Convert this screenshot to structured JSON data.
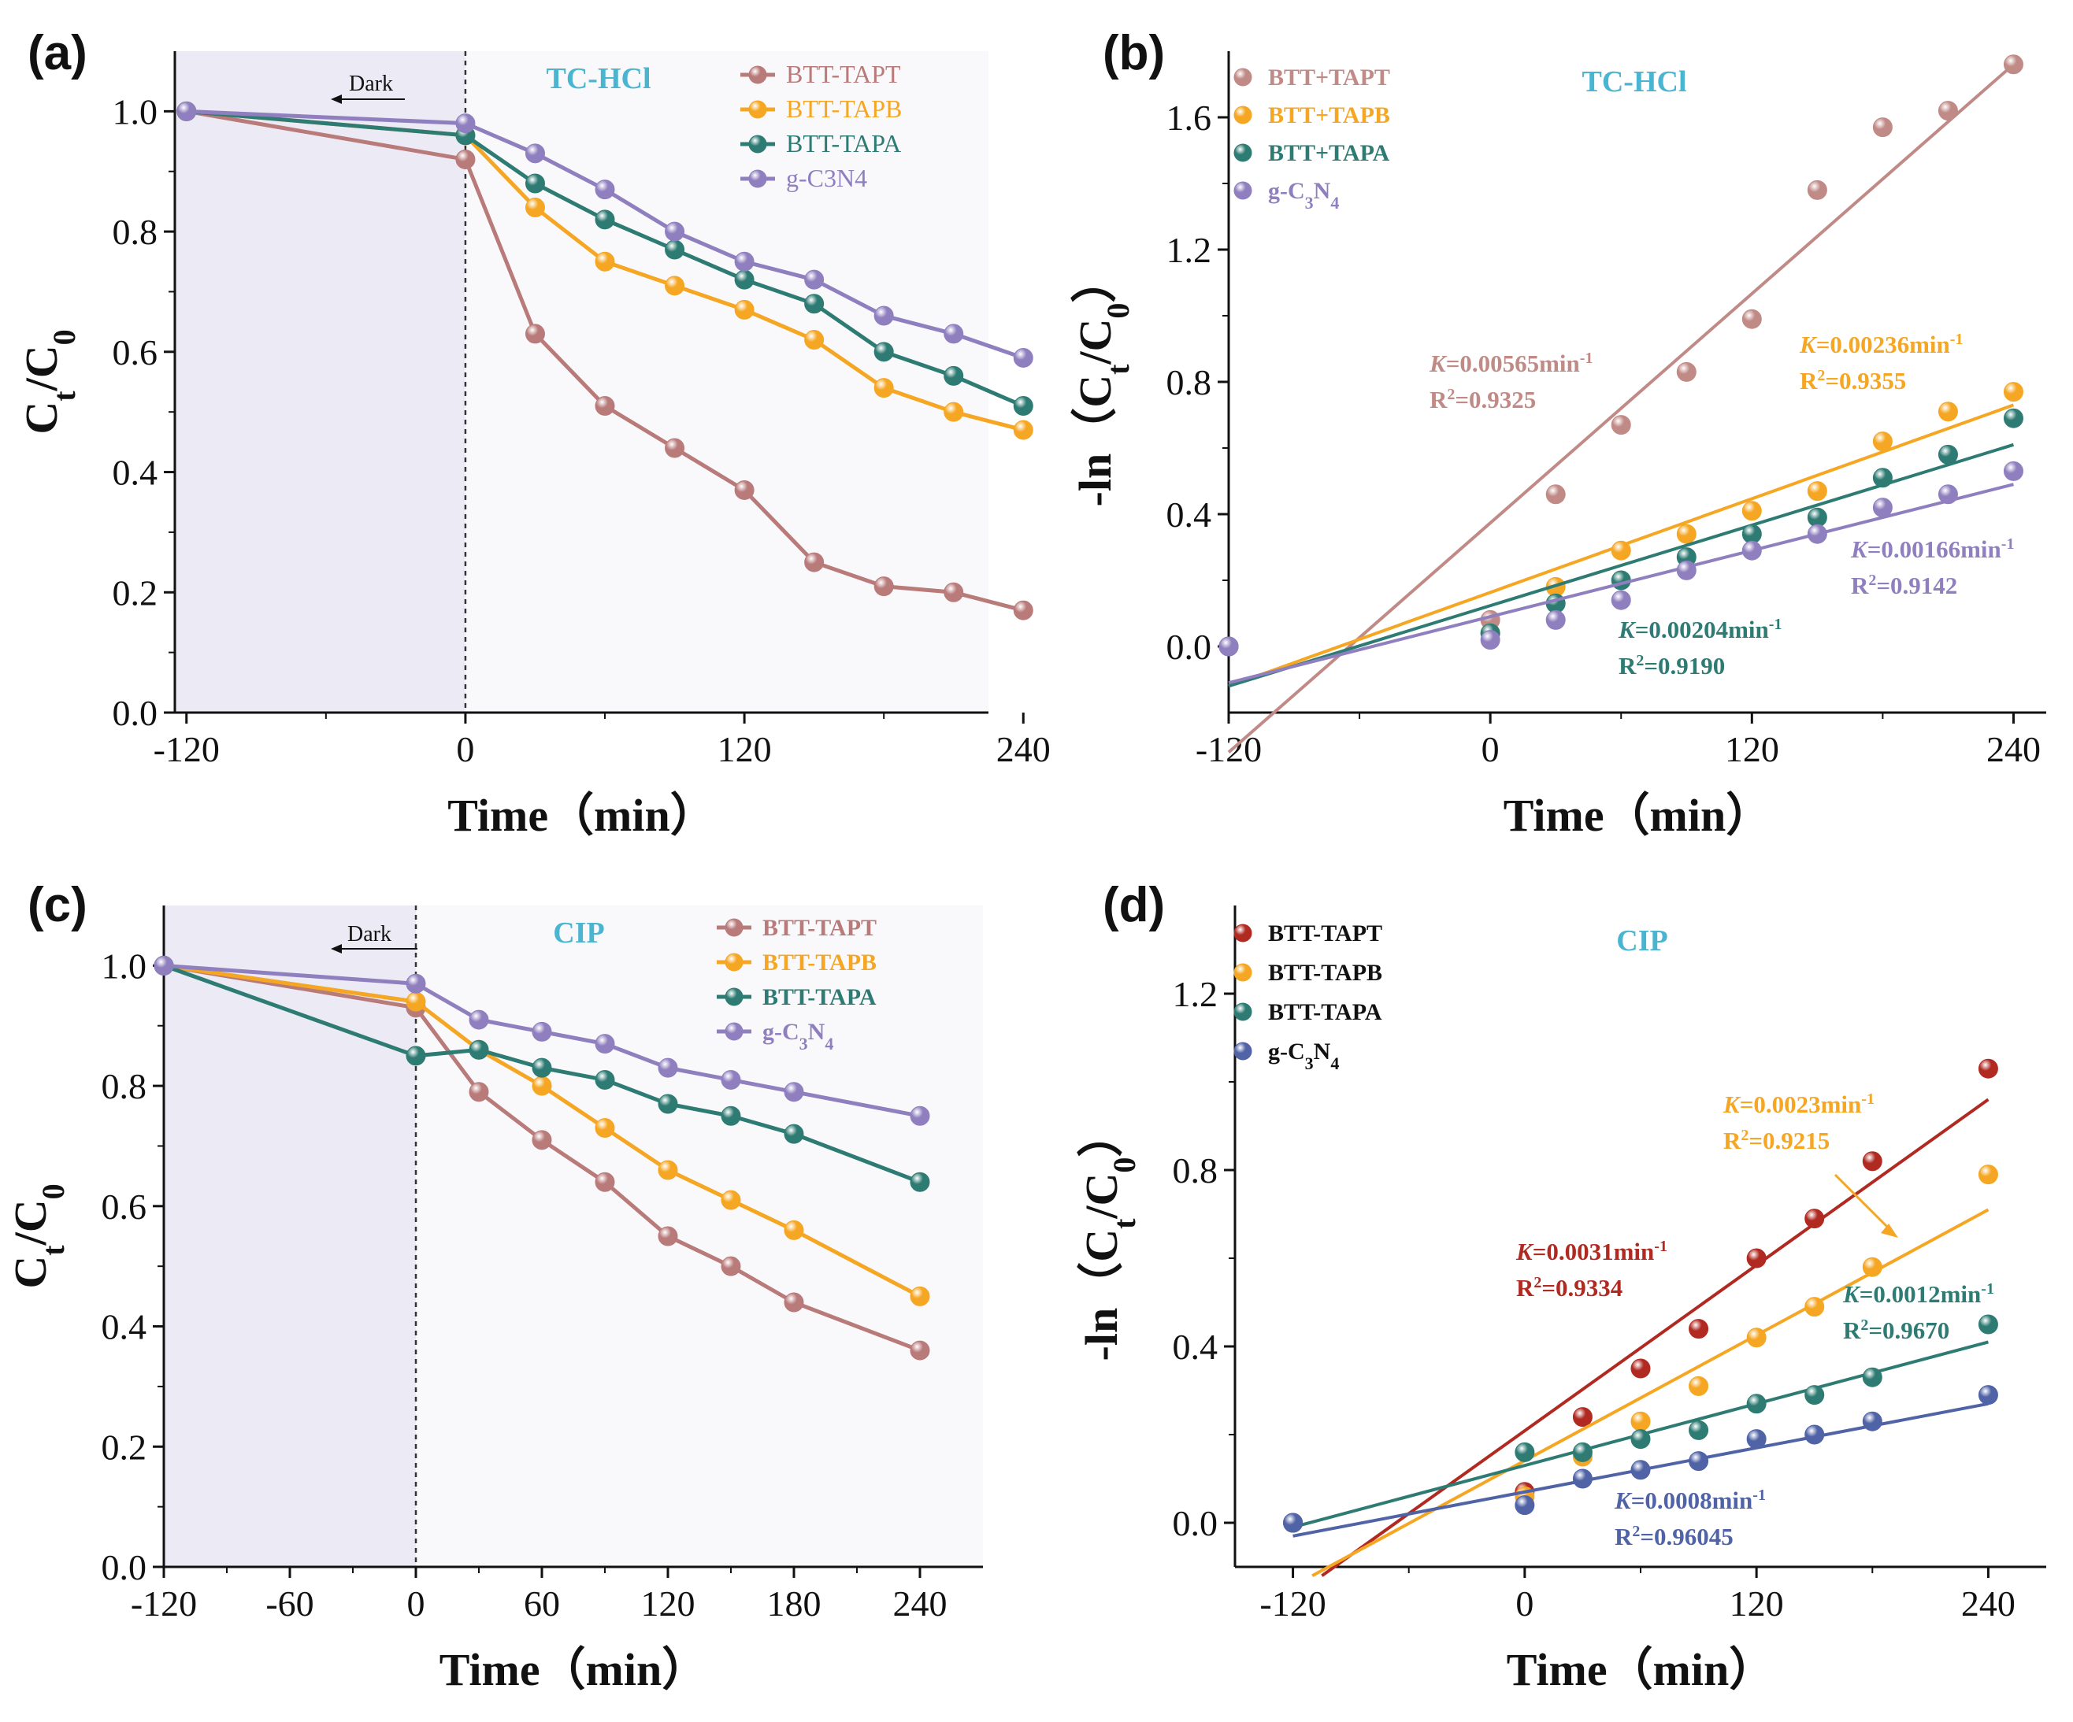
{
  "chart_data": [
    {
      "panel": "(a)",
      "type": "line",
      "title": "TC-HCl",
      "dark_label": "Dark",
      "xlabel": "Time（min）",
      "ylabel_main": "C",
      "ylabel_sub1": "t",
      "ylabel_mid": "/C",
      "ylabel_sub2": "0",
      "xlim": [
        -125,
        225
      ],
      "ylim": [
        0,
        1.1
      ],
      "xticks": [
        -120,
        0,
        120,
        240
      ],
      "xtick_labels": [
        "-120",
        "0",
        "120",
        "240"
      ],
      "yticks": [
        0,
        0.2,
        0.4,
        0.6,
        0.8,
        1.0
      ],
      "ytick_labels": [
        "0.0",
        "0.2",
        "0.4",
        "0.6",
        "0.8",
        "1.0"
      ],
      "x": [
        -120,
        0,
        30,
        60,
        90,
        120,
        150,
        180,
        210,
        240
      ],
      "shade_range": [
        -125,
        0
      ],
      "series": [
        {
          "name": "BTT-TAPT",
          "color": "#b97a7a",
          "values": [
            1.0,
            0.92,
            0.63,
            0.51,
            0.44,
            0.37,
            0.25,
            0.21,
            0.2,
            0.17
          ]
        },
        {
          "name": "BTT-TAPB",
          "color": "#f5a623",
          "values": [
            1.0,
            0.96,
            0.84,
            0.75,
            0.71,
            0.67,
            0.62,
            0.54,
            0.5,
            0.47
          ]
        },
        {
          "name": "BTT-TAPA",
          "color": "#2e7b73",
          "values": [
            1.0,
            0.96,
            0.88,
            0.82,
            0.77,
            0.72,
            0.68,
            0.6,
            0.56,
            0.51
          ]
        },
        {
          "name": "g-C3N4",
          "color": "#8f7fbf",
          "values": [
            1.0,
            0.98,
            0.93,
            0.87,
            0.8,
            0.75,
            0.72,
            0.66,
            0.63,
            0.59
          ]
        }
      ]
    },
    {
      "panel": "(b)",
      "type": "scatter",
      "title": "TC-HCl",
      "xlabel": "Time（min）",
      "ylabel": "-ln（C",
      "ylabel_sub1": "t",
      "ylabel_mid": "/C",
      "ylabel_sub2": "0",
      "ylabel_end": "）",
      "xlim": [
        -120,
        255
      ],
      "ylim": [
        -0.2,
        1.8
      ],
      "xticks": [
        -120,
        0,
        120,
        240
      ],
      "xtick_labels": [
        "-120",
        "0",
        "120",
        "240"
      ],
      "yticks": [
        0.0,
        0.4,
        0.8,
        1.2,
        1.6
      ],
      "ytick_labels": [
        "0.0",
        "0.4",
        "0.8",
        "1.2",
        "1.6"
      ],
      "x": [
        -120,
        0,
        30,
        60,
        90,
        120,
        150,
        180,
        210,
        240
      ],
      "series": [
        {
          "name": "BTT+TAPT",
          "color": "#c08a86",
          "values": [
            0.0,
            0.08,
            0.46,
            0.67,
            0.83,
            0.99,
            1.38,
            1.57,
            1.62,
            1.76
          ],
          "fit": [
            [
              -120,
              -0.32
            ],
            [
              240,
              1.76
            ]
          ],
          "k_label": "K",
          "k_value": "=0.00565min",
          "k_exp": "-1",
          "r2_label": "R",
          "r2_exp": "2",
          "r2_value": "=0.9325"
        },
        {
          "name": "BTT+TAPB",
          "color": "#f5a623",
          "values": [
            0.0,
            0.04,
            0.18,
            0.29,
            0.34,
            0.41,
            0.47,
            0.62,
            0.71,
            0.77
          ],
          "fit": [
            [
              -120,
              -0.12
            ],
            [
              240,
              0.73
            ]
          ],
          "k_label": "K",
          "k_value": "=0.00236min",
          "k_exp": "-1",
          "r2_label": "R",
          "r2_exp": "2",
          "r2_value": "=0.9355"
        },
        {
          "name": "BTT+TAPA",
          "color": "#2e7b73",
          "values": [
            0.0,
            0.04,
            0.13,
            0.2,
            0.27,
            0.34,
            0.39,
            0.51,
            0.58,
            0.69
          ],
          "fit": [
            [
              -120,
              -0.12
            ],
            [
              240,
              0.61
            ]
          ],
          "k_label": "K",
          "k_value": "=0.00204min",
          "k_exp": "-1",
          "r2_label": "R",
          "r2_exp": "2",
          "r2_value": "=0.9190"
        },
        {
          "name": "g-C3N4",
          "legend_main": "g-C",
          "legend_sub1": "3",
          "legend_mid": "N",
          "legend_sub2": "4",
          "color": "#8f7fbf",
          "values": [
            0.0,
            0.02,
            0.08,
            0.14,
            0.23,
            0.29,
            0.34,
            0.42,
            0.46,
            0.53
          ],
          "fit": [
            [
              -120,
              -0.11
            ],
            [
              240,
              0.49
            ]
          ],
          "k_label": "K",
          "k_value": "=0.00166min",
          "k_exp": "-1",
          "r2_label": "R",
          "r2_exp": "2",
          "r2_value": "=0.9142"
        }
      ]
    },
    {
      "panel": "(c)",
      "type": "line",
      "title": "CIP",
      "dark_label": "Dark",
      "xlabel": "Time（min）",
      "ylabel_main": "C",
      "ylabel_sub1": "t",
      "ylabel_mid": "/C",
      "ylabel_sub2": "0",
      "xlim": [
        -120,
        270
      ],
      "ylim": [
        0,
        1.1
      ],
      "xticks": [
        -120,
        -60,
        0,
        60,
        120,
        180,
        240
      ],
      "xtick_labels": [
        "-120",
        "-60",
        "0",
        "60",
        "120",
        "180",
        "240"
      ],
      "yticks": [
        0,
        0.2,
        0.4,
        0.6,
        0.8,
        1.0
      ],
      "ytick_labels": [
        "0.0",
        "0.2",
        "0.4",
        "0.6",
        "0.8",
        "1.0"
      ],
      "x": [
        -120,
        0,
        30,
        60,
        90,
        120,
        150,
        180,
        240
      ],
      "shade_range": [
        -120,
        0
      ],
      "series": [
        {
          "name": "BTT-TAPT",
          "color": "#b97a7a",
          "values": [
            1.0,
            0.93,
            0.79,
            0.71,
            0.64,
            0.55,
            0.5,
            0.44,
            0.36
          ]
        },
        {
          "name": "BTT-TAPB",
          "color": "#f5a623",
          "values": [
            1.0,
            0.94,
            0.86,
            0.8,
            0.73,
            0.66,
            0.61,
            0.56,
            0.45
          ]
        },
        {
          "name": "BTT-TAPA",
          "color": "#2e7b73",
          "values": [
            1.0,
            0.85,
            0.86,
            0.83,
            0.81,
            0.77,
            0.75,
            0.72,
            0.64
          ]
        },
        {
          "name": "g-C3N4",
          "legend_main": "g-C",
          "legend_sub1": "3",
          "legend_mid": "N",
          "legend_sub2": "4",
          "color": "#8f7fbf",
          "values": [
            1.0,
            0.97,
            0.91,
            0.89,
            0.87,
            0.83,
            0.81,
            0.79,
            0.75
          ]
        }
      ]
    },
    {
      "panel": "(d)",
      "type": "scatter",
      "title": "CIP",
      "xlabel": "Time（min）",
      "ylabel": "-ln（C",
      "ylabel_sub1": "t",
      "ylabel_mid": "/C",
      "ylabel_sub2": "0",
      "ylabel_end": "）",
      "xlim": [
        -150,
        270
      ],
      "ylim": [
        -0.1,
        1.4
      ],
      "xticks": [
        -120,
        0,
        120,
        240
      ],
      "xtick_labels": [
        "-120",
        "0",
        "120",
        "240"
      ],
      "yticks": [
        0.0,
        0.4,
        0.8,
        1.2
      ],
      "ytick_labels": [
        "0.0",
        "0.4",
        "0.8",
        "1.2"
      ],
      "x": [
        -120,
        0,
        30,
        60,
        90,
        120,
        150,
        180,
        240
      ],
      "series": [
        {
          "name": "BTT-TAPT",
          "color": "#b02a22",
          "values": [
            0.0,
            0.07,
            0.24,
            0.35,
            0.44,
            0.6,
            0.69,
            0.82,
            1.03
          ],
          "fit": [
            [
              -105,
              -0.12
            ],
            [
              240,
              0.96
            ]
          ],
          "k_label": "K",
          "k_value": "=0.0031min",
          "k_exp": "-1",
          "r2_label": "R",
          "r2_exp": "2",
          "r2_value": "=0.9334"
        },
        {
          "name": "BTT-TAPB",
          "color": "#f5a623",
          "values": [
            0.0,
            0.06,
            0.15,
            0.23,
            0.31,
            0.42,
            0.49,
            0.58,
            0.79
          ],
          "fit": [
            [
              -110,
              -0.12
            ],
            [
              240,
              0.71
            ]
          ],
          "k_label": "K",
          "k_value": "=0.0023min",
          "k_exp": "-1",
          "r2_label": "R",
          "r2_exp": "2",
          "r2_value": "=0.9215"
        },
        {
          "name": "BTT-TAPA",
          "color": "#2e7b73",
          "values": [
            0.0,
            0.16,
            0.16,
            0.19,
            0.21,
            0.27,
            0.29,
            0.33,
            0.45
          ],
          "fit": [
            [
              -120,
              -0.01
            ],
            [
              240,
              0.41
            ]
          ],
          "k_label": "K",
          "k_value": "=0.0012min",
          "k_exp": "-1",
          "r2_label": "R",
          "r2_exp": "2",
          "r2_value": "=0.9670"
        },
        {
          "name": "g-C3N4",
          "legend_main": "g-C",
          "legend_sub1": "3",
          "legend_mid": "N",
          "legend_sub2": "4",
          "color": "#4f63a6",
          "values": [
            0.0,
            0.04,
            0.1,
            0.12,
            0.14,
            0.19,
            0.2,
            0.23,
            0.29
          ],
          "fit": [
            [
              -120,
              -0.03
            ],
            [
              240,
              0.27
            ]
          ],
          "k_label": "K",
          "k_value": "=0.0008min",
          "k_exp": "-1",
          "r2_label": "R",
          "r2_exp": "2",
          "r2_value": "=0.96045"
        }
      ]
    }
  ]
}
